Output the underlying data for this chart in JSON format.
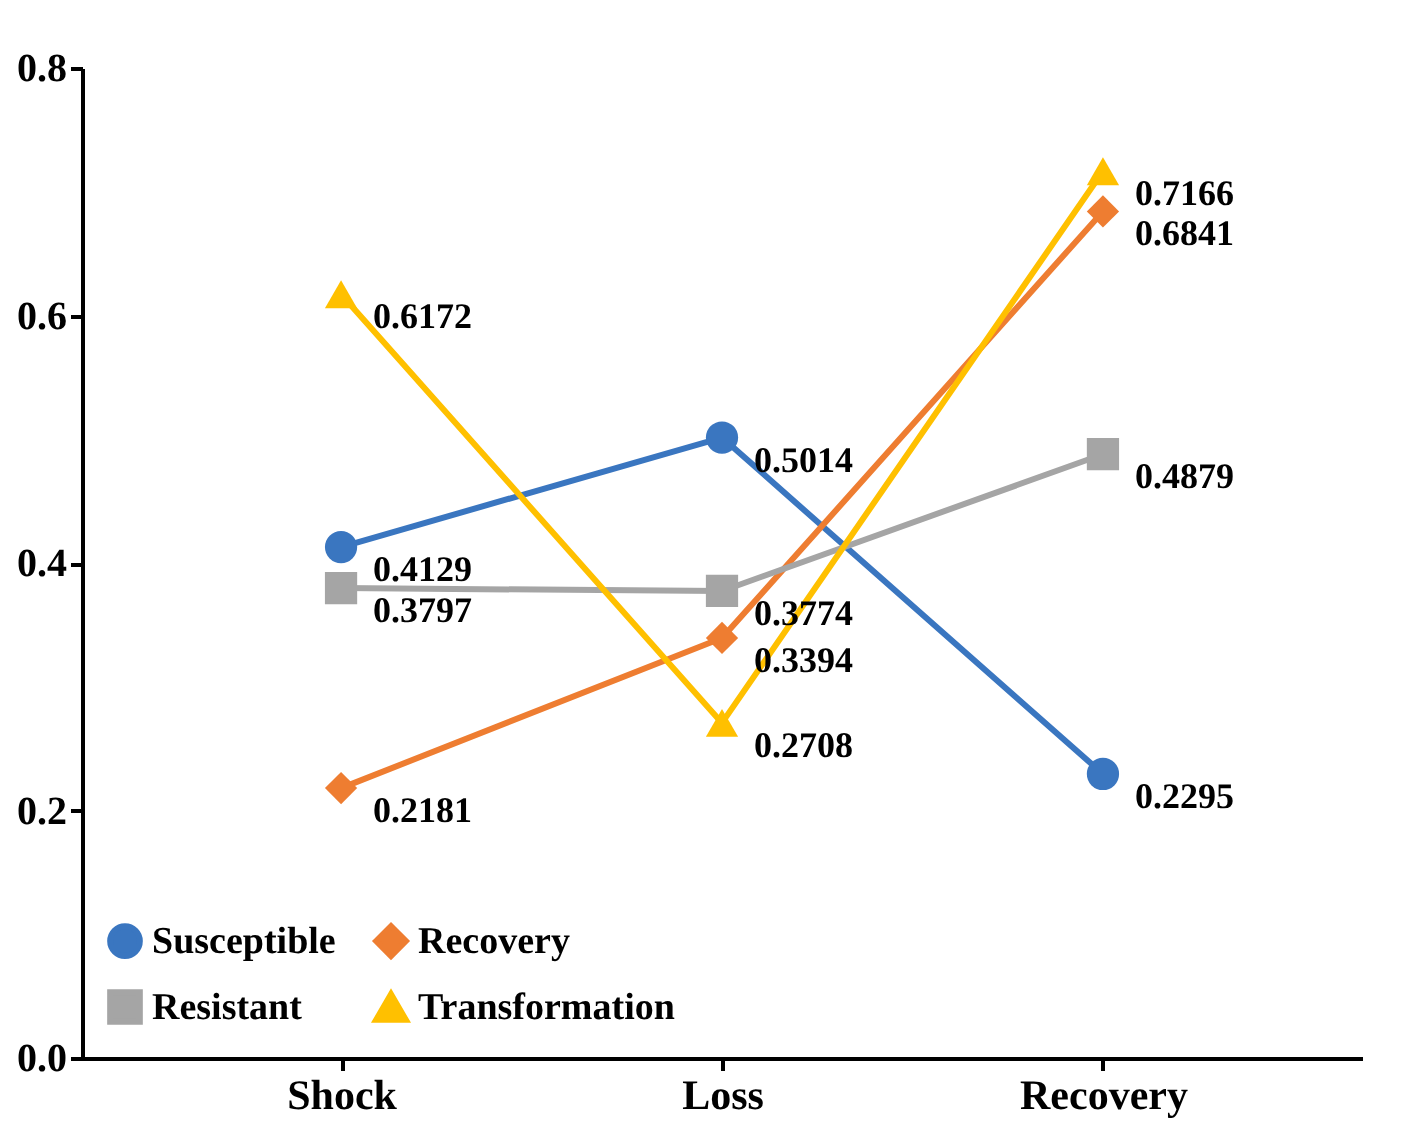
{
  "chart_data": {
    "type": "line",
    "categories": [
      "Shock",
      "Loss",
      "Recovery"
    ],
    "series": [
      {
        "name": "Susceptible",
        "color": "#3a76c0",
        "marker": "circle",
        "values": [
          0.4129,
          0.5014,
          0.2295
        ]
      },
      {
        "name": "Recovery",
        "color": "#ee7d31",
        "marker": "diamond",
        "values": [
          0.2181,
          0.3394,
          0.6841
        ]
      },
      {
        "name": "Resistant",
        "color": "#a5a5a5",
        "marker": "square",
        "values": [
          0.3797,
          0.3774,
          0.4879
        ]
      },
      {
        "name": "Transformation",
        "color": "#ffc000",
        "marker": "triangle",
        "values": [
          0.6172,
          0.2708,
          0.7166
        ]
      }
    ],
    "ylim": [
      0,
      0.8
    ],
    "yticks": [
      {
        "value": 0,
        "label": "0.0"
      },
      0.2,
      0.4,
      0.6,
      0.8
    ],
    "data_labels": true,
    "legend": "bottom left",
    "grid": false,
    "line_style": "solid"
  }
}
